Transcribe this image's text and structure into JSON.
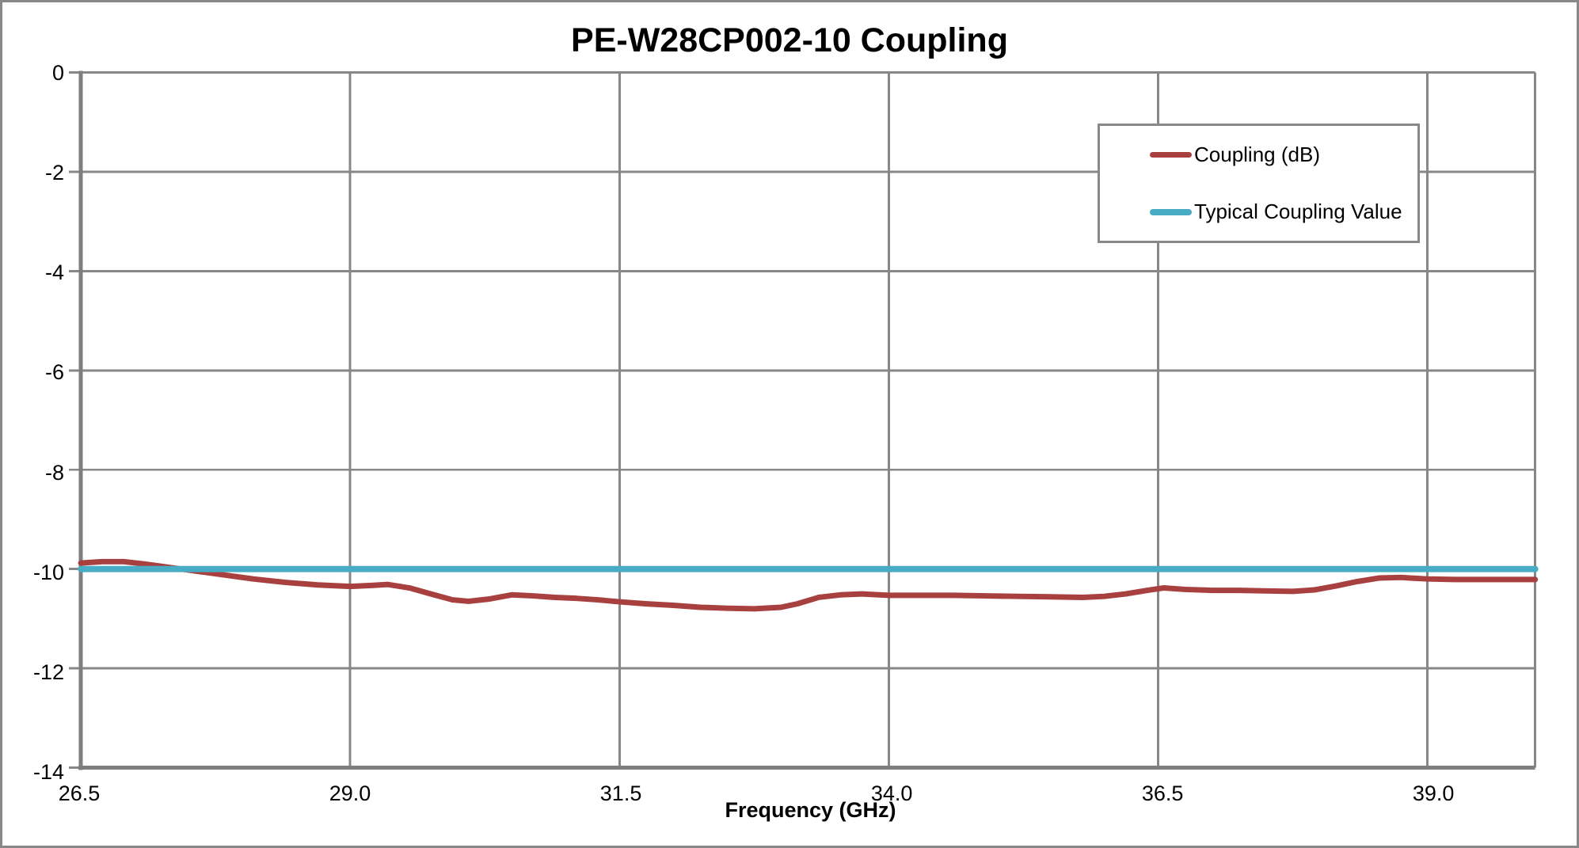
{
  "page": {
    "background": "#FFFFFF",
    "border_color": "#888888"
  },
  "chart_data": {
    "type": "line",
    "title": "PE-W28CP002-10 Coupling",
    "xlabel": "Frequency (GHz)",
    "ylabel": "",
    "xlim": [
      26.5,
      40.0
    ],
    "ylim": [
      -14,
      0
    ],
    "xticks": [
      26.5,
      29.0,
      31.5,
      34.0,
      36.5,
      39.0
    ],
    "xtick_labels": [
      "26.5",
      "29.0",
      "31.5",
      "34.0",
      "36.5",
      "39.0"
    ],
    "yticks": [
      0,
      -2,
      -4,
      -6,
      -8,
      -10,
      -12,
      -14
    ],
    "ytick_labels": [
      "0",
      "-2",
      "-4",
      "-6",
      "-8",
      "-10",
      "-12",
      "-14"
    ],
    "grid": true,
    "legend_position": "upper right",
    "colors": {
      "gridline": "#878787",
      "axis": "#7E7E7E",
      "text": "#000000",
      "legend_border": "#888888"
    },
    "series": [
      {
        "name": "Coupling (dB)",
        "color": "#A84040",
        "stroke_width": 7,
        "x": [
          26.5,
          26.7,
          26.9,
          27.1,
          27.3,
          27.5,
          27.7,
          27.9,
          28.1,
          28.4,
          28.7,
          29.0,
          29.2,
          29.35,
          29.55,
          29.75,
          29.95,
          30.1,
          30.3,
          30.5,
          30.7,
          30.9,
          31.1,
          31.3,
          31.5,
          31.75,
          32.0,
          32.25,
          32.5,
          32.75,
          33.0,
          33.15,
          33.35,
          33.55,
          33.75,
          34.0,
          34.3,
          34.6,
          34.9,
          35.2,
          35.5,
          35.8,
          36.0,
          36.2,
          36.4,
          36.55,
          36.75,
          37.0,
          37.25,
          37.5,
          37.75,
          37.95,
          38.15,
          38.35,
          38.55,
          38.75,
          39.0,
          39.25,
          39.5,
          39.75,
          40.0
        ],
        "y": [
          -9.88,
          -9.85,
          -9.85,
          -9.9,
          -9.96,
          -10.02,
          -10.08,
          -10.14,
          -10.2,
          -10.27,
          -10.32,
          -10.35,
          -10.33,
          -10.31,
          -10.38,
          -10.5,
          -10.62,
          -10.65,
          -10.6,
          -10.52,
          -10.54,
          -10.57,
          -10.59,
          -10.62,
          -10.66,
          -10.7,
          -10.73,
          -10.77,
          -10.79,
          -10.8,
          -10.77,
          -10.7,
          -10.57,
          -10.52,
          -10.5,
          -10.53,
          -10.53,
          -10.53,
          -10.54,
          -10.55,
          -10.56,
          -10.57,
          -10.55,
          -10.5,
          -10.43,
          -10.38,
          -10.41,
          -10.43,
          -10.43,
          -10.44,
          -10.45,
          -10.42,
          -10.34,
          -10.25,
          -10.18,
          -10.17,
          -10.2,
          -10.21,
          -10.21,
          -10.21,
          -10.21
        ]
      },
      {
        "name": "Typical Coupling Value",
        "color": "#49ACC5",
        "stroke_width": 8,
        "x": [
          26.5,
          40.0
        ],
        "y": [
          -10.0,
          -10.0
        ]
      }
    ]
  }
}
